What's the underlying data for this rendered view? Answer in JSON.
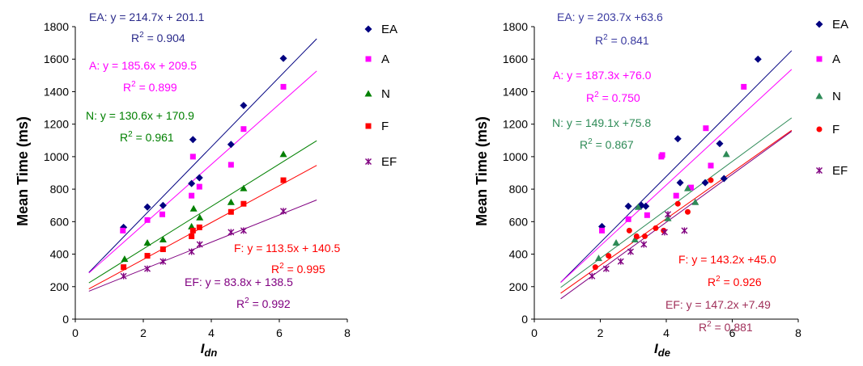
{
  "chart_data": [
    {
      "type": "scatter",
      "xlabel": "I",
      "xlabel_sub": "dn",
      "ylabel": "Mean Time (ms)",
      "xlim": [
        0,
        8
      ],
      "ylim": [
        0,
        1800
      ],
      "xticks": [
        0,
        2,
        4,
        6,
        8
      ],
      "yticks": [
        0,
        200,
        400,
        600,
        800,
        1000,
        1200,
        1400,
        1600,
        1800
      ],
      "grid": false,
      "legend_position": "right",
      "series": [
        {
          "name": "EA",
          "color": "#000080",
          "marker": "diamond",
          "x": [
            1.42,
            2.12,
            2.58,
            3.42,
            3.46,
            3.65,
            4.58,
            4.95,
            6.12
          ],
          "y": [
            565,
            690,
            700,
            835,
            1105,
            870,
            1075,
            1315,
            1605
          ],
          "fit": {
            "slope": 214.7,
            "intercept": 201.1,
            "x_range": [
              0.4,
              7.1
            ]
          },
          "annotation": {
            "eq": "EA: y = 214.7x + 201.1",
            "r2": "0.904",
            "color": "#2a2a8a"
          }
        },
        {
          "name": "A",
          "color": "#ff00ff",
          "marker": "square",
          "x": [
            1.4,
            2.12,
            2.56,
            3.42,
            3.46,
            3.65,
            4.58,
            4.95,
            6.12
          ],
          "y": [
            545,
            610,
            645,
            760,
            1000,
            815,
            950,
            1170,
            1430
          ],
          "fit": {
            "slope": 185.6,
            "intercept": 209.5,
            "x_range": [
              0.4,
              7.1
            ]
          },
          "annotation": {
            "eq": "A: y = 185.6x + 209.5",
            "r2": "0.899",
            "color": "#ff00ff"
          }
        },
        {
          "name": "N",
          "color": "#008000",
          "marker": "triangle",
          "x": [
            1.45,
            2.12,
            2.58,
            3.42,
            3.48,
            3.66,
            4.58,
            4.95,
            6.12
          ],
          "y": [
            370,
            470,
            490,
            570,
            680,
            625,
            720,
            805,
            1015
          ],
          "fit": {
            "slope": 130.6,
            "intercept": 170.9,
            "x_range": [
              0.4,
              7.1
            ]
          },
          "annotation": {
            "eq": "N: y = 130.6x + 170.9",
            "r2": "0.961",
            "color": "#008000"
          }
        },
        {
          "name": "F",
          "color": "#ff0000",
          "marker": "square",
          "x": [
            1.42,
            2.12,
            2.58,
            3.42,
            3.46,
            3.65,
            4.58,
            4.95,
            6.12
          ],
          "y": [
            320,
            390,
            430,
            510,
            545,
            565,
            660,
            710,
            855
          ],
          "fit": {
            "slope": 113.5,
            "intercept": 140.5,
            "x_range": [
              0.4,
              7.1
            ]
          },
          "annotation": {
            "eq": "F: y = 113.5x + 140.5",
            "r2": "0.995",
            "color": "#ff0000"
          }
        },
        {
          "name": "EF",
          "color": "#800080",
          "marker": "star",
          "x": [
            1.42,
            2.12,
            2.58,
            3.42,
            3.66,
            4.58,
            4.95,
            6.12
          ],
          "y": [
            265,
            310,
            355,
            415,
            460,
            535,
            545,
            665
          ],
          "fit": {
            "slope": 83.8,
            "intercept": 138.5,
            "x_range": [
              0.4,
              7.1
            ]
          },
          "annotation": {
            "eq": "EF: y = 83.8x + 138.5",
            "r2": "0.992",
            "color": "#800080"
          }
        }
      ]
    },
    {
      "type": "scatter",
      "xlabel": "I",
      "xlabel_sub": "de",
      "ylabel": "Mean Time (ms)",
      "xlim": [
        0,
        8
      ],
      "ylim": [
        0,
        1800
      ],
      "xticks": [
        0,
        2,
        4,
        6,
        8
      ],
      "yticks": [
        0,
        200,
        400,
        600,
        800,
        1000,
        1200,
        1400,
        1600,
        1800
      ],
      "grid": false,
      "legend_position": "right",
      "series": [
        {
          "name": "EA",
          "color": "#000080",
          "marker": "diamond",
          "x": [
            2.05,
            2.85,
            3.25,
            3.38,
            4.35,
            4.42,
            5.18,
            5.62,
            5.75,
            6.78
          ],
          "y": [
            570,
            695,
            700,
            695,
            1110,
            840,
            840,
            1080,
            865,
            1600
          ],
          "fit": {
            "slope": 203.7,
            "intercept": 63.6,
            "x_range": [
              0.8,
              7.8
            ]
          },
          "annotation": {
            "eq": "EA: y = 203.7x +63.6",
            "r2": "0.841",
            "color": "#3a3aa0"
          }
        },
        {
          "name": "A",
          "color": "#ff00ff",
          "marker": "square",
          "x": [
            2.05,
            2.85,
            3.42,
            3.85,
            3.88,
            4.3,
            4.75,
            5.2,
            5.35,
            6.35
          ],
          "y": [
            545,
            615,
            640,
            1000,
            1010,
            760,
            810,
            1175,
            945,
            1430
          ],
          "fit": {
            "slope": 187.3,
            "intercept": 76.0,
            "x_range": [
              0.8,
              7.8
            ]
          },
          "annotation": {
            "eq": "A: y = 187.3x +76.0",
            "r2": "0.750",
            "color": "#ff00ff"
          }
        },
        {
          "name": "N",
          "color": "#2e8b57",
          "marker": "triangle",
          "x": [
            1.95,
            2.48,
            3.05,
            3.15,
            4.05,
            4.65,
            4.88,
            5.82
          ],
          "y": [
            375,
            470,
            490,
            690,
            620,
            805,
            720,
            1015
          ],
          "fit": {
            "slope": 149.1,
            "intercept": 75.8,
            "x_range": [
              0.8,
              7.8
            ]
          },
          "annotation": {
            "eq": "N: y = 149.1x +75.8",
            "r2": "0.867",
            "color": "#2e8b57"
          }
        },
        {
          "name": "F",
          "color": "#ff0000",
          "marker": "circle",
          "x": [
            1.85,
            2.25,
            2.88,
            3.1,
            3.35,
            3.68,
            3.92,
            4.35,
            4.65,
            5.35
          ],
          "y": [
            320,
            390,
            545,
            510,
            510,
            560,
            545,
            710,
            660,
            855
          ],
          "fit": {
            "slope": 143.2,
            "intercept": 45.0,
            "x_range": [
              0.8,
              7.8
            ]
          },
          "annotation": {
            "eq": "F: y = 143.2x +45.0",
            "r2": "0.926",
            "color": "#ff0000"
          }
        },
        {
          "name": "EF",
          "color": "#800080",
          "marker": "star",
          "x": [
            1.75,
            2.18,
            2.62,
            2.92,
            3.32,
            3.95,
            4.05,
            4.55
          ],
          "y": [
            265,
            310,
            355,
            415,
            460,
            535,
            645,
            545
          ],
          "fit": {
            "slope": 147.2,
            "intercept": 7.49,
            "x_range": [
              0.8,
              7.8
            ]
          },
          "annotation": {
            "eq": "EF: y = 147.2x +7.49",
            "r2": "0.881",
            "color": "#a0305a"
          }
        }
      ]
    }
  ]
}
